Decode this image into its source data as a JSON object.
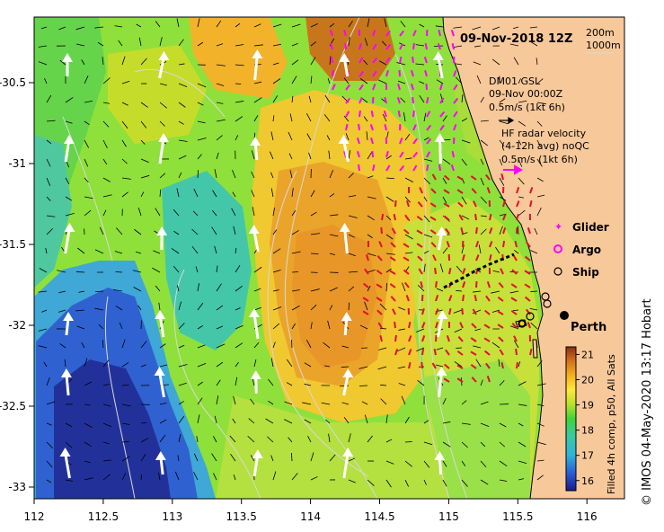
{
  "title": "09-Nov-2018 12Z",
  "depth_legend": [
    "200m",
    "1000m"
  ],
  "glider_block": {
    "line1": "DM01 GSL",
    "line2": "09-Nov 00:00Z",
    "line3": "0.5m/s (1kt 6h)"
  },
  "hf_block": {
    "line1": "HF radar velocity",
    "line2": "(4-12h avg) noQC",
    "line3": "0.5m/s (1kt 6h)"
  },
  "symbol_legend": {
    "glider": "Glider",
    "argo": "Argo",
    "ship": "Ship"
  },
  "city_label": "Perth",
  "colorbar": {
    "caption": "Filled 4h comp, p50, All Sats",
    "ticks": [
      "21",
      "20",
      "19",
      "18",
      "17",
      "16"
    ],
    "range": [
      15.6,
      21.3
    ]
  },
  "credit": "© IMOS 04-May-2020 13:17 Hobart",
  "x_ticks": [
    "112",
    "112.5",
    "113",
    "113.5",
    "114",
    "114.5",
    "115",
    "115.5",
    "116"
  ],
  "y_ticks": [
    "-30.5",
    "-31",
    "-31.5",
    "-32",
    "-32.5",
    "-33"
  ],
  "colors": {
    "land": "#f7c89a",
    "glider_marker": "#ff00ff",
    "hf_arrow": "#ff00ff",
    "radar_vector": "#e0102a",
    "current_arrow": "#ffffff",
    "contour": "#d8d8d8"
  }
}
